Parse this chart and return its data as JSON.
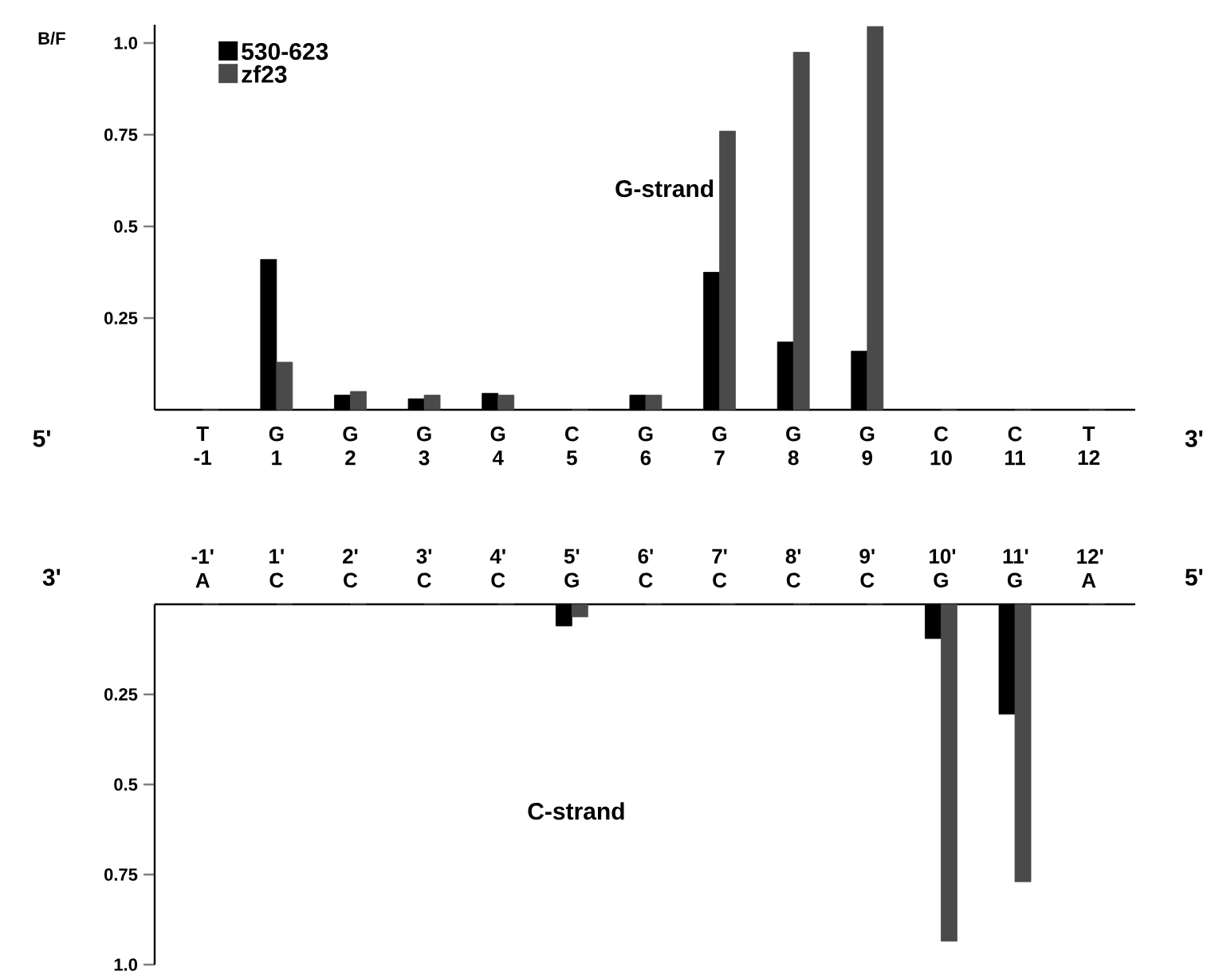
{
  "chart_data": [
    {
      "type": "bar",
      "title": "G-strand",
      "ylabel": "B/F",
      "categories": [
        "T -1",
        "G 1",
        "G 2",
        "G 3",
        "G 4",
        "C 5",
        "G 6",
        "G 7",
        "G 8",
        "G 9",
        "C 10",
        "C 11",
        "T 12"
      ],
      "series": [
        {
          "name": "530-623",
          "color": "#000000",
          "values": [
            0,
            0.41,
            0.04,
            0.03,
            0.045,
            0,
            0.04,
            0.375,
            0.185,
            0.16,
            0,
            0,
            0
          ]
        },
        {
          "name": "zf23",
          "color": "#4a4a4a",
          "values": [
            0,
            0.13,
            0.05,
            0.04,
            0.04,
            0,
            0.04,
            0.76,
            0.975,
            1.045,
            0,
            0,
            0
          ]
        }
      ],
      "ylim": [
        0,
        1.05
      ],
      "yticks": [
        0.25,
        0.5,
        0.75,
        {
          "value": 1.0,
          "label": "1.0"
        }
      ],
      "legend": "top left",
      "grid": false,
      "annotations": [
        "5'",
        "3'"
      ]
    },
    {
      "type": "bar",
      "title": "C-strand",
      "categories": [
        "-1' A",
        "1' C",
        "2' C",
        "3' C",
        "4' C",
        "5' G",
        "6' C",
        "7' C",
        "8' C",
        "9' C",
        "10' G",
        "11' G",
        "12' A"
      ],
      "series": [
        {
          "color": "#000000",
          "values": [
            0,
            0,
            0,
            0,
            0,
            0.06,
            0,
            0,
            0,
            0,
            0.095,
            0.305,
            0
          ]
        },
        {
          "color": "#4a4a4a",
          "values": [
            0,
            0,
            0,
            0,
            0,
            0.035,
            0,
            0,
            0,
            0,
            0.935,
            0.77,
            0
          ]
        }
      ],
      "ylim": [
        1.0,
        0
      ],
      "yticks": [
        0.25,
        0.5,
        0.75,
        {
          "value": 1.0,
          "label": "1.0"
        }
      ],
      "legend": false,
      "grid": false,
      "annotations": [
        "3'",
        "5'"
      ]
    }
  ]
}
